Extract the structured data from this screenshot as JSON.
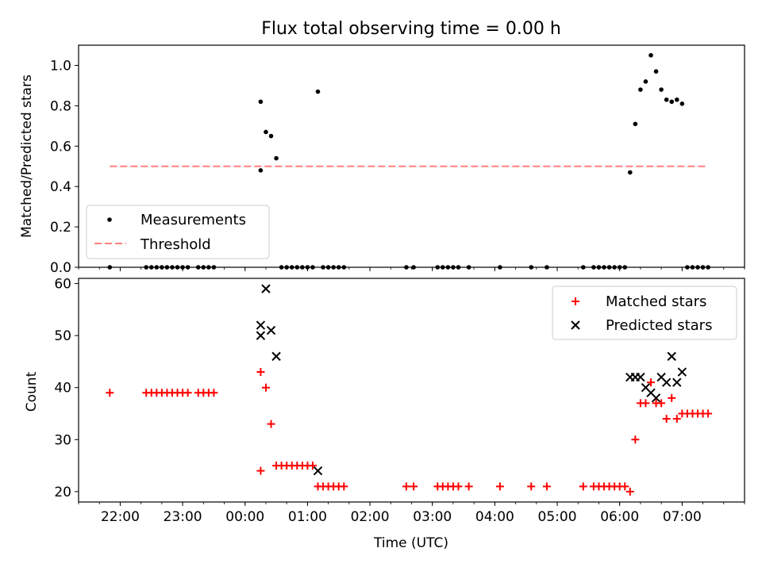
{
  "chart_data": [
    {
      "type": "scatter",
      "title": "Flux total observing time = 0.00 h",
      "xlabel": "",
      "ylabel": "Matched/Predicted stars",
      "ylim": [
        0,
        1.1
      ],
      "xlim": [
        "21:20",
        "08:00"
      ],
      "x_ticks": [
        "22:00",
        "23:00",
        "00:00",
        "01:00",
        "02:00",
        "03:00",
        "04:00",
        "05:00",
        "06:00",
        "07:00"
      ],
      "y_ticks": [
        "0.0",
        "0.2",
        "0.4",
        "0.6",
        "0.8",
        "1.0"
      ],
      "grid": false,
      "legend_position": "lower-left",
      "legend": [
        "Measurements",
        "Threshold"
      ],
      "colors": {
        "measurements": "#000000",
        "threshold": "#ff7f7f"
      },
      "series": [
        {
          "name": "Measurements",
          "points": [
            [
              "21:50",
              0
            ],
            [
              "22:25",
              0
            ],
            [
              "22:30",
              0
            ],
            [
              "22:35",
              0
            ],
            [
              "22:40",
              0
            ],
            [
              "22:45",
              0
            ],
            [
              "22:50",
              0
            ],
            [
              "22:55",
              0
            ],
            [
              "23:00",
              0
            ],
            [
              "23:05",
              0
            ],
            [
              "23:15",
              0
            ],
            [
              "23:20",
              0
            ],
            [
              "23:25",
              0
            ],
            [
              "23:30",
              0
            ],
            [
              "00:15",
              0.48
            ],
            [
              "00:15",
              0.82
            ],
            [
              "00:20",
              0.67
            ],
            [
              "00:25",
              0.65
            ],
            [
              "00:30",
              0.54
            ],
            [
              "00:35",
              0
            ],
            [
              "00:40",
              0
            ],
            [
              "00:45",
              0
            ],
            [
              "00:50",
              0
            ],
            [
              "00:55",
              0
            ],
            [
              "01:00",
              0
            ],
            [
              "01:05",
              0
            ],
            [
              "01:10",
              0.87
            ],
            [
              "01:15",
              0
            ],
            [
              "01:20",
              0
            ],
            [
              "01:25",
              0
            ],
            [
              "01:30",
              0
            ],
            [
              "01:35",
              0
            ],
            [
              "02:35",
              0
            ],
            [
              "02:42",
              0
            ],
            [
              "03:05",
              0
            ],
            [
              "03:10",
              0
            ],
            [
              "03:15",
              0
            ],
            [
              "03:20",
              0
            ],
            [
              "03:25",
              0
            ],
            [
              "03:35",
              0
            ],
            [
              "04:05",
              0
            ],
            [
              "04:35",
              0
            ],
            [
              "04:50",
              0
            ],
            [
              "05:25",
              0
            ],
            [
              "05:35",
              0
            ],
            [
              "05:40",
              0
            ],
            [
              "05:45",
              0
            ],
            [
              "05:50",
              0
            ],
            [
              "05:55",
              0
            ],
            [
              "06:00",
              0
            ],
            [
              "06:05",
              0
            ],
            [
              "06:10",
              0.47
            ],
            [
              "06:15",
              0.71
            ],
            [
              "06:20",
              0.88
            ],
            [
              "06:25",
              0.92
            ],
            [
              "06:30",
              1.05
            ],
            [
              "06:35",
              0.97
            ],
            [
              "06:40",
              0.88
            ],
            [
              "06:45",
              0.83
            ],
            [
              "06:50",
              0.82
            ],
            [
              "06:55",
              0.83
            ],
            [
              "07:00",
              0.81
            ],
            [
              "07:05",
              0
            ],
            [
              "07:10",
              0
            ],
            [
              "07:15",
              0
            ],
            [
              "07:20",
              0
            ],
            [
              "07:25",
              0
            ]
          ]
        },
        {
          "name": "Threshold",
          "line": [
            [
              "21:50",
              0.5
            ],
            [
              "07:25",
              0.5
            ]
          ]
        }
      ]
    },
    {
      "type": "scatter",
      "title": "",
      "xlabel": "Time (UTC)",
      "ylabel": "Count",
      "ylim": [
        18,
        61
      ],
      "xlim": [
        "21:20",
        "08:00"
      ],
      "x_ticks": [
        "22:00",
        "23:00",
        "00:00",
        "01:00",
        "02:00",
        "03:00",
        "04:00",
        "05:00",
        "06:00",
        "07:00"
      ],
      "y_ticks": [
        "20",
        "30",
        "40",
        "50",
        "60"
      ],
      "grid": false,
      "legend_position": "upper-right",
      "legend": [
        "Matched stars",
        "Predicted stars"
      ],
      "colors": {
        "matched": "#ff0000",
        "predicted": "#000000"
      },
      "series": [
        {
          "name": "Matched stars",
          "points": [
            [
              "21:50",
              39
            ],
            [
              "22:25",
              39
            ],
            [
              "22:30",
              39
            ],
            [
              "22:35",
              39
            ],
            [
              "22:40",
              39
            ],
            [
              "22:45",
              39
            ],
            [
              "22:50",
              39
            ],
            [
              "22:55",
              39
            ],
            [
              "23:00",
              39
            ],
            [
              "23:05",
              39
            ],
            [
              "23:15",
              39
            ],
            [
              "23:20",
              39
            ],
            [
              "23:25",
              39
            ],
            [
              "23:30",
              39
            ],
            [
              "00:15",
              24
            ],
            [
              "00:15",
              43
            ],
            [
              "00:20",
              40
            ],
            [
              "00:25",
              33
            ],
            [
              "00:30",
              25
            ],
            [
              "00:35",
              25
            ],
            [
              "00:40",
              25
            ],
            [
              "00:45",
              25
            ],
            [
              "00:50",
              25
            ],
            [
              "00:55",
              25
            ],
            [
              "01:00",
              25
            ],
            [
              "01:05",
              25
            ],
            [
              "01:10",
              21
            ],
            [
              "01:15",
              21
            ],
            [
              "01:20",
              21
            ],
            [
              "01:25",
              21
            ],
            [
              "01:30",
              21
            ],
            [
              "01:35",
              21
            ],
            [
              "02:35",
              21
            ],
            [
              "02:42",
              21
            ],
            [
              "03:05",
              21
            ],
            [
              "03:10",
              21
            ],
            [
              "03:15",
              21
            ],
            [
              "03:20",
              21
            ],
            [
              "03:25",
              21
            ],
            [
              "03:35",
              21
            ],
            [
              "04:05",
              21
            ],
            [
              "04:35",
              21
            ],
            [
              "04:50",
              21
            ],
            [
              "05:25",
              21
            ],
            [
              "05:35",
              21
            ],
            [
              "05:40",
              21
            ],
            [
              "05:45",
              21
            ],
            [
              "05:50",
              21
            ],
            [
              "05:55",
              21
            ],
            [
              "06:00",
              21
            ],
            [
              "06:05",
              21
            ],
            [
              "06:10",
              20
            ],
            [
              "06:15",
              30
            ],
            [
              "06:20",
              37
            ],
            [
              "06:25",
              37
            ],
            [
              "06:30",
              41
            ],
            [
              "06:35",
              37
            ],
            [
              "06:40",
              37
            ],
            [
              "06:45",
              34
            ],
            [
              "06:50",
              38
            ],
            [
              "06:55",
              34
            ],
            [
              "07:00",
              35
            ],
            [
              "07:05",
              35
            ],
            [
              "07:10",
              35
            ],
            [
              "07:15",
              35
            ],
            [
              "07:20",
              35
            ],
            [
              "07:25",
              35
            ]
          ]
        },
        {
          "name": "Predicted stars",
          "points": [
            [
              "00:15",
              50
            ],
            [
              "00:15",
              52
            ],
            [
              "00:20",
              59
            ],
            [
              "00:25",
              51
            ],
            [
              "00:30",
              46
            ],
            [
              "01:10",
              24
            ],
            [
              "06:10",
              42
            ],
            [
              "06:15",
              42
            ],
            [
              "06:20",
              42
            ],
            [
              "06:25",
              40
            ],
            [
              "06:30",
              39
            ],
            [
              "06:35",
              38
            ],
            [
              "06:40",
              42
            ],
            [
              "06:45",
              41
            ],
            [
              "06:50",
              46
            ],
            [
              "06:55",
              41
            ],
            [
              "07:00",
              43
            ]
          ]
        }
      ]
    }
  ]
}
